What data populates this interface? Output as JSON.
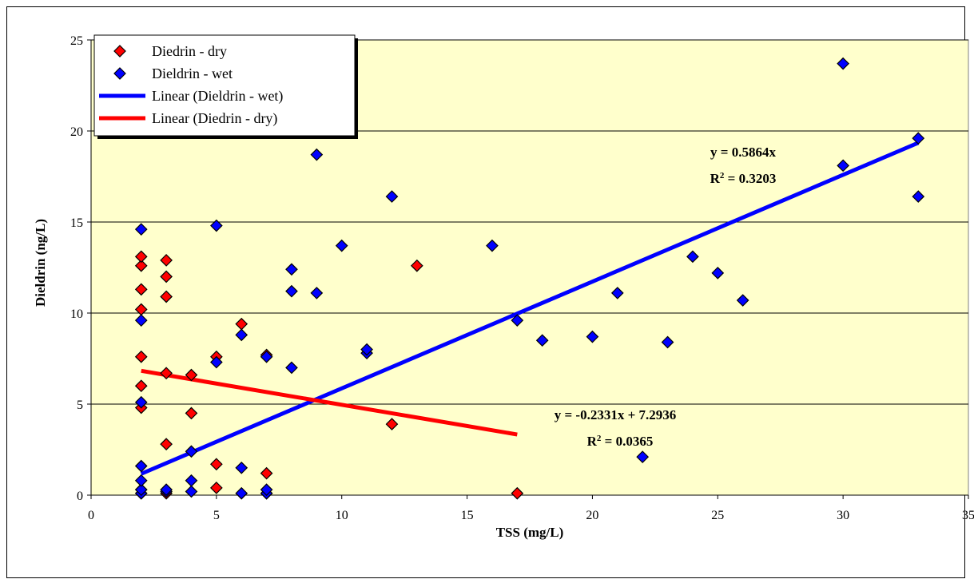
{
  "chart_data": {
    "type": "scatter",
    "xlabel": "TSS (mg/L)",
    "ylabel": "Dieldrin (ng/L)",
    "xlim": [
      0,
      35
    ],
    "ylim": [
      0,
      25
    ],
    "xticks": [
      "0",
      "5",
      "10",
      "15",
      "20",
      "25",
      "30",
      "35"
    ],
    "yticks": [
      "0",
      "5",
      "10",
      "15",
      "20",
      "25"
    ],
    "grid": "horizontal",
    "plot_background": "#FFFFCC",
    "legend_position": "top-left",
    "series": [
      {
        "name": "Diedrin - dry",
        "color": "#FF0000",
        "marker": "diamond",
        "points": [
          [
            2,
            0.1
          ],
          [
            2,
            0.3
          ],
          [
            2,
            4.8
          ],
          [
            2,
            6.0
          ],
          [
            2,
            7.6
          ],
          [
            2,
            10.2
          ],
          [
            2,
            11.3
          ],
          [
            2,
            12.6
          ],
          [
            2,
            13.1
          ],
          [
            3,
            0.1
          ],
          [
            3,
            2.8
          ],
          [
            3,
            6.7
          ],
          [
            3,
            10.9
          ],
          [
            3,
            12.0
          ],
          [
            3,
            12.9
          ],
          [
            4,
            4.5
          ],
          [
            4,
            6.6
          ],
          [
            5,
            0.4
          ],
          [
            5,
            1.7
          ],
          [
            5,
            7.6
          ],
          [
            6,
            9.4
          ],
          [
            7,
            0.1
          ],
          [
            7,
            1.2
          ],
          [
            7,
            7.7
          ],
          [
            12,
            3.9
          ],
          [
            13,
            12.6
          ],
          [
            17,
            0.1
          ]
        ]
      },
      {
        "name": "Dieldrin - wet",
        "color": "#0000FF",
        "marker": "diamond",
        "points": [
          [
            2,
            0.1
          ],
          [
            2,
            0.3
          ],
          [
            2,
            0.8
          ],
          [
            2,
            1.6
          ],
          [
            2,
            5.1
          ],
          [
            2,
            9.6
          ],
          [
            2,
            14.6
          ],
          [
            3,
            0.2
          ],
          [
            3,
            0.3
          ],
          [
            4,
            0.2
          ],
          [
            4,
            0.8
          ],
          [
            4,
            2.4
          ],
          [
            5,
            7.3
          ],
          [
            5,
            14.8
          ],
          [
            6,
            0.1
          ],
          [
            6,
            1.5
          ],
          [
            6,
            8.8
          ],
          [
            7,
            0.1
          ],
          [
            7,
            0.3
          ],
          [
            7,
            7.6
          ],
          [
            8,
            7.0
          ],
          [
            8,
            11.2
          ],
          [
            8,
            12.4
          ],
          [
            9,
            11.1
          ],
          [
            9,
            18.7
          ],
          [
            10,
            13.7
          ],
          [
            11,
            7.8
          ],
          [
            11,
            8.0
          ],
          [
            12,
            16.4
          ],
          [
            16,
            13.7
          ],
          [
            17,
            9.6
          ],
          [
            18,
            8.5
          ],
          [
            20,
            8.7
          ],
          [
            21,
            11.1
          ],
          [
            22,
            2.1
          ],
          [
            23,
            8.4
          ],
          [
            24,
            13.1
          ],
          [
            25,
            12.2
          ],
          [
            26,
            10.7
          ],
          [
            30,
            18.1
          ],
          [
            30,
            23.7
          ],
          [
            33,
            16.4
          ],
          [
            33,
            19.6
          ]
        ]
      }
    ],
    "trendlines": [
      {
        "name": "Linear (Dieldrin - wet)",
        "color": "#0000FF",
        "slope": 0.5864,
        "intercept": 0,
        "x_range": [
          2,
          33
        ],
        "equation": "y = 0.5864x",
        "r2_prefix": "R",
        "r2_value": " = 0.3203"
      },
      {
        "name": "Linear (Diedrin - dry)",
        "color": "#FF0000",
        "slope": -0.2331,
        "intercept": 7.2936,
        "x_range": [
          2,
          17
        ],
        "equation": "y = -0.2331x + 7.2936",
        "r2_prefix": "R",
        "r2_value": " = 0.0365"
      }
    ],
    "superscript": "2"
  }
}
